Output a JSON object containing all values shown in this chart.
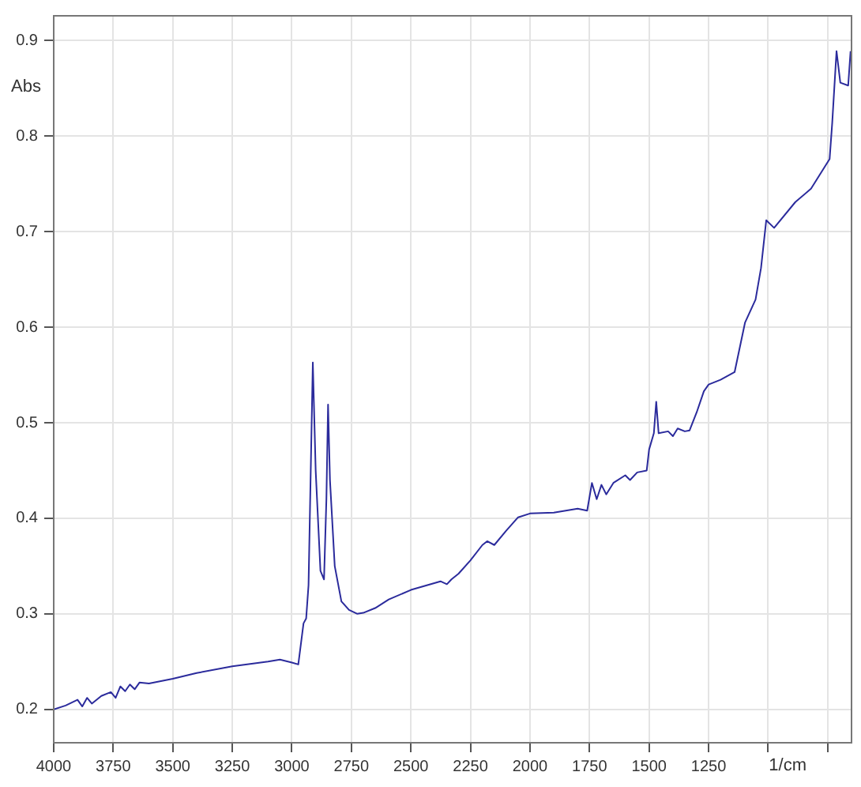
{
  "chart_data": {
    "type": "line",
    "xlabel": "1/cm",
    "ylabel": "Abs",
    "xlim": [
      4000,
      650
    ],
    "ylim": [
      0.165,
      0.926
    ],
    "xticks": [
      4000,
      3750,
      3500,
      3250,
      3000,
      2750,
      2500,
      2250,
      2000,
      1750,
      1500,
      1250,
      {
        "value": 1000,
        "label": null
      },
      {
        "value": 750,
        "label": null
      }
    ],
    "yticks": [
      0.2,
      0.3,
      0.4,
      0.5,
      0.6,
      0.7,
      0.8,
      0.9
    ],
    "grid": true,
    "legend": false,
    "marker": "none",
    "line_style": "solid",
    "series": [
      {
        "color": "#2b2b9c",
        "x": [
          4000,
          3950,
          3900,
          3880,
          3860,
          3840,
          3800,
          3760,
          3740,
          3720,
          3700,
          3680,
          3660,
          3640,
          3600,
          3500,
          3400,
          3250,
          3100,
          3050,
          3000,
          2973,
          2951,
          2940,
          2930,
          2912,
          2900,
          2880,
          2865,
          2855,
          2848,
          2840,
          2820,
          2792,
          2760,
          2725,
          2700,
          2650,
          2593,
          2500,
          2376,
          2349,
          2330,
          2300,
          2250,
          2200,
          2180,
          2150,
          2100,
          2050,
          2000,
          1900,
          1800,
          1760,
          1740,
          1720,
          1700,
          1680,
          1650,
          1600,
          1580,
          1550,
          1510,
          1500,
          1480,
          1470,
          1460,
          1420,
          1400,
          1380,
          1350,
          1330,
          1300,
          1270,
          1250,
          1200,
          1141,
          1097,
          1053,
          1030,
          1008,
          975,
          886,
          820,
          742,
          731,
          713,
          697,
          664,
          654
        ],
        "values": [
          0.2,
          0.204,
          0.21,
          0.203,
          0.212,
          0.206,
          0.214,
          0.218,
          0.212,
          0.224,
          0.219,
          0.226,
          0.221,
          0.228,
          0.227,
          0.232,
          0.238,
          0.245,
          0.25,
          0.252,
          0.249,
          0.247,
          0.29,
          0.295,
          0.33,
          0.563,
          0.45,
          0.345,
          0.336,
          0.42,
          0.519,
          0.44,
          0.35,
          0.313,
          0.304,
          0.3,
          0.301,
          0.306,
          0.315,
          0.325,
          0.334,
          0.331,
          0.336,
          0.342,
          0.356,
          0.372,
          0.376,
          0.372,
          0.387,
          0.401,
          0.405,
          0.406,
          0.41,
          0.408,
          0.437,
          0.42,
          0.435,
          0.425,
          0.437,
          0.445,
          0.44,
          0.448,
          0.45,
          0.472,
          0.489,
          0.522,
          0.489,
          0.491,
          0.486,
          0.494,
          0.491,
          0.492,
          0.511,
          0.533,
          0.54,
          0.545,
          0.553,
          0.605,
          0.629,
          0.662,
          0.712,
          0.704,
          0.731,
          0.745,
          0.776,
          0.814,
          0.889,
          0.856,
          0.853,
          0.889
        ]
      }
    ]
  }
}
